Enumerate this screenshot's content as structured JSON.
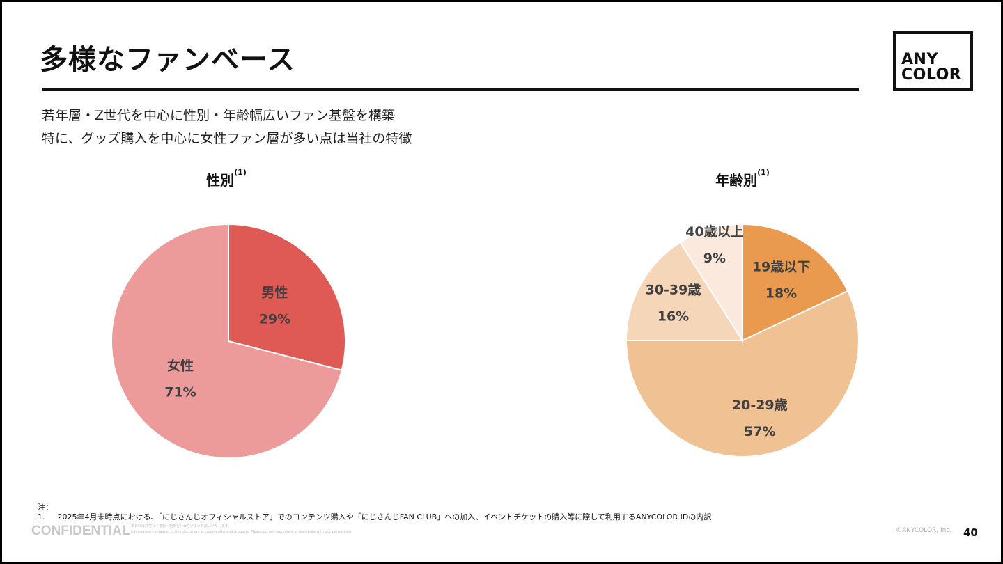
{
  "title": "多様なファンベース",
  "logo": {
    "line1": "ANY",
    "line2": "COLOR"
  },
  "subtitle": [
    "若年層・Z世代を中心に性別・年齢幅広いファン基盤を構築",
    "特に、グッズ購入を中心に女性ファン層が多い点は当社の特徴"
  ],
  "chart_data": [
    {
      "type": "pie",
      "title": "性別",
      "footnote_ref": "(1)",
      "start": "top",
      "direction": "clockwise",
      "slices": [
        {
          "label": "男性",
          "value": 29,
          "display": "29%",
          "color": "#E05A55"
        },
        {
          "label": "女性",
          "value": 71,
          "display": "71%",
          "color": "#EC9B9A"
        }
      ]
    },
    {
      "type": "pie",
      "title": "年齢別",
      "footnote_ref": "(1)",
      "start": "top",
      "direction": "clockwise",
      "slices": [
        {
          "label": "19歳以下",
          "value": 18,
          "display": "18%",
          "color": "#E99A4E"
        },
        {
          "label": "20-29歳",
          "value": 57,
          "display": "57%",
          "color": "#F0C193"
        },
        {
          "label": "30-39歳",
          "value": 16,
          "display": "16%",
          "color": "#F6D6B8"
        },
        {
          "label": "40歳以上",
          "value": 9,
          "display": "9%",
          "color": "#FAE9DC"
        }
      ]
    }
  ],
  "notes": {
    "heading": "注：",
    "items": [
      {
        "num": "1.",
        "text": "2025年4月末時点における、「にじさんじオフィシャルストア」でのコンテンツ購入や「にじさんじFAN CLUB」への加入、イベントチケットの購入等に際して利用するANYCOLOR IDの内訳"
      }
    ]
  },
  "footer": {
    "confidential": "CONFIDENTIAL",
    "disclaimer_jp": "本資料は許可なく複製・配布を行わないようお願いいたします。",
    "disclaimer_en": "Information contained in this document is confidential and property. Please do not reproduce or distribute with out permission.",
    "copyright": "©ANYCOLOR, Inc.",
    "page": "40"
  }
}
